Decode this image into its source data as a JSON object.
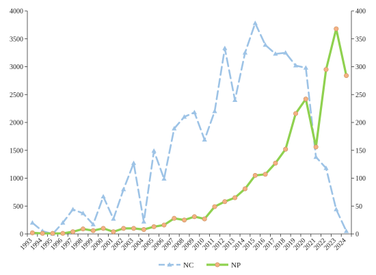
{
  "chart_data": {
    "type": "line",
    "title": "",
    "xlabel": "",
    "ylabel": "",
    "x": [
      "1993",
      "1994",
      "1995",
      "1996",
      "1997",
      "1998",
      "1999",
      "2000",
      "2001",
      "2002",
      "2003",
      "2004",
      "2005",
      "2006",
      "2007",
      "2008",
      "2009",
      "2010",
      "2011",
      "2012",
      "2013",
      "2014",
      "2015",
      "2016",
      "2017",
      "2018",
      "2019",
      "2020",
      "2021",
      "2022",
      "2023",
      "2024"
    ],
    "y_left": {
      "ylim": [
        0,
        4000
      ],
      "ticks": [
        0,
        500,
        1000,
        1500,
        2000,
        2500,
        3000,
        3500,
        4000
      ]
    },
    "y_right": {
      "ylim": [
        0,
        400
      ],
      "ticks": [
        0,
        50,
        100,
        150,
        200,
        250,
        300,
        350,
        400
      ]
    },
    "grid": false,
    "legend_position": "bottom",
    "series": [
      {
        "name": "NC",
        "axis": "left",
        "style": "dashed",
        "marker": "triangle",
        "color": "#9dc3e6",
        "values": [
          200,
          50,
          0,
          200,
          440,
          370,
          170,
          670,
          270,
          800,
          1270,
          220,
          1490,
          990,
          1890,
          2100,
          2180,
          1690,
          2200,
          3330,
          2400,
          3250,
          3780,
          3390,
          3230,
          3250,
          3020,
          2980,
          1380,
          1180,
          440,
          50
        ]
      },
      {
        "name": "NP",
        "axis": "right",
        "style": "solid",
        "marker": "circle",
        "color": "#8fd14f",
        "marker_color": "#f4b183",
        "values": [
          2,
          1,
          1,
          1,
          4,
          9,
          6,
          10,
          4,
          10,
          10,
          8,
          13,
          16,
          28,
          25,
          31,
          27,
          49,
          58,
          65,
          81,
          105,
          107,
          127,
          152,
          216,
          242,
          156,
          295,
          368,
          284
        ]
      }
    ]
  }
}
